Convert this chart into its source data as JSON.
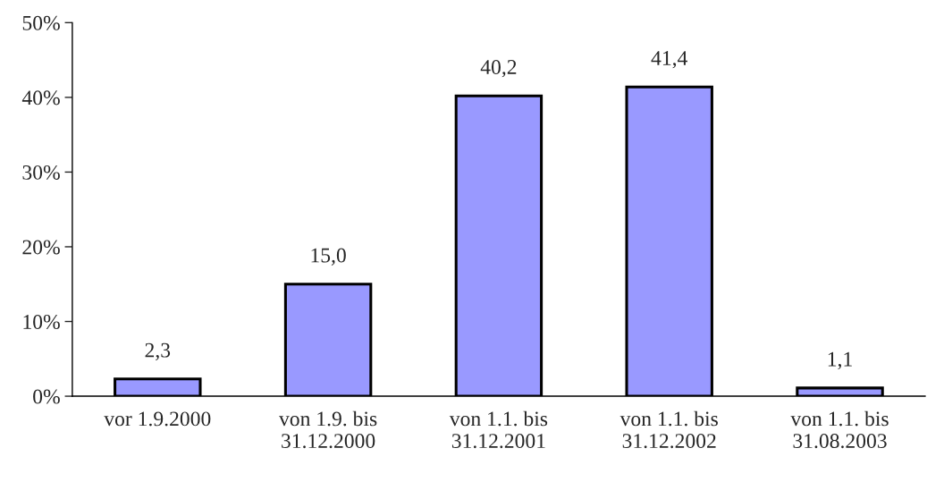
{
  "chart_data": {
    "type": "bar",
    "categories": [
      "vor 1.9.2000",
      "von 1.9. bis\n31.12.2000",
      "von 1.1. bis\n31.12.2001",
      "von 1.1. bis\n31.12.2002",
      "von 1.1. bis\n31.08.2003"
    ],
    "values": [
      2.3,
      15.0,
      40.2,
      41.4,
      1.1
    ],
    "value_labels": [
      "2,3",
      "15,0",
      "40,2",
      "41,4",
      "1,1"
    ],
    "color": "#9999ff",
    "ylim": [
      0,
      50
    ],
    "yticks": [
      {
        "value": 0,
        "label": "0%"
      },
      {
        "value": 10,
        "label": "10%"
      },
      {
        "value": 20,
        "label": "20%"
      },
      {
        "value": 30,
        "label": "30%"
      },
      {
        "value": 40,
        "label": "40%"
      },
      {
        "value": 50,
        "label": "50%"
      }
    ],
    "grid": false,
    "legend": false
  }
}
